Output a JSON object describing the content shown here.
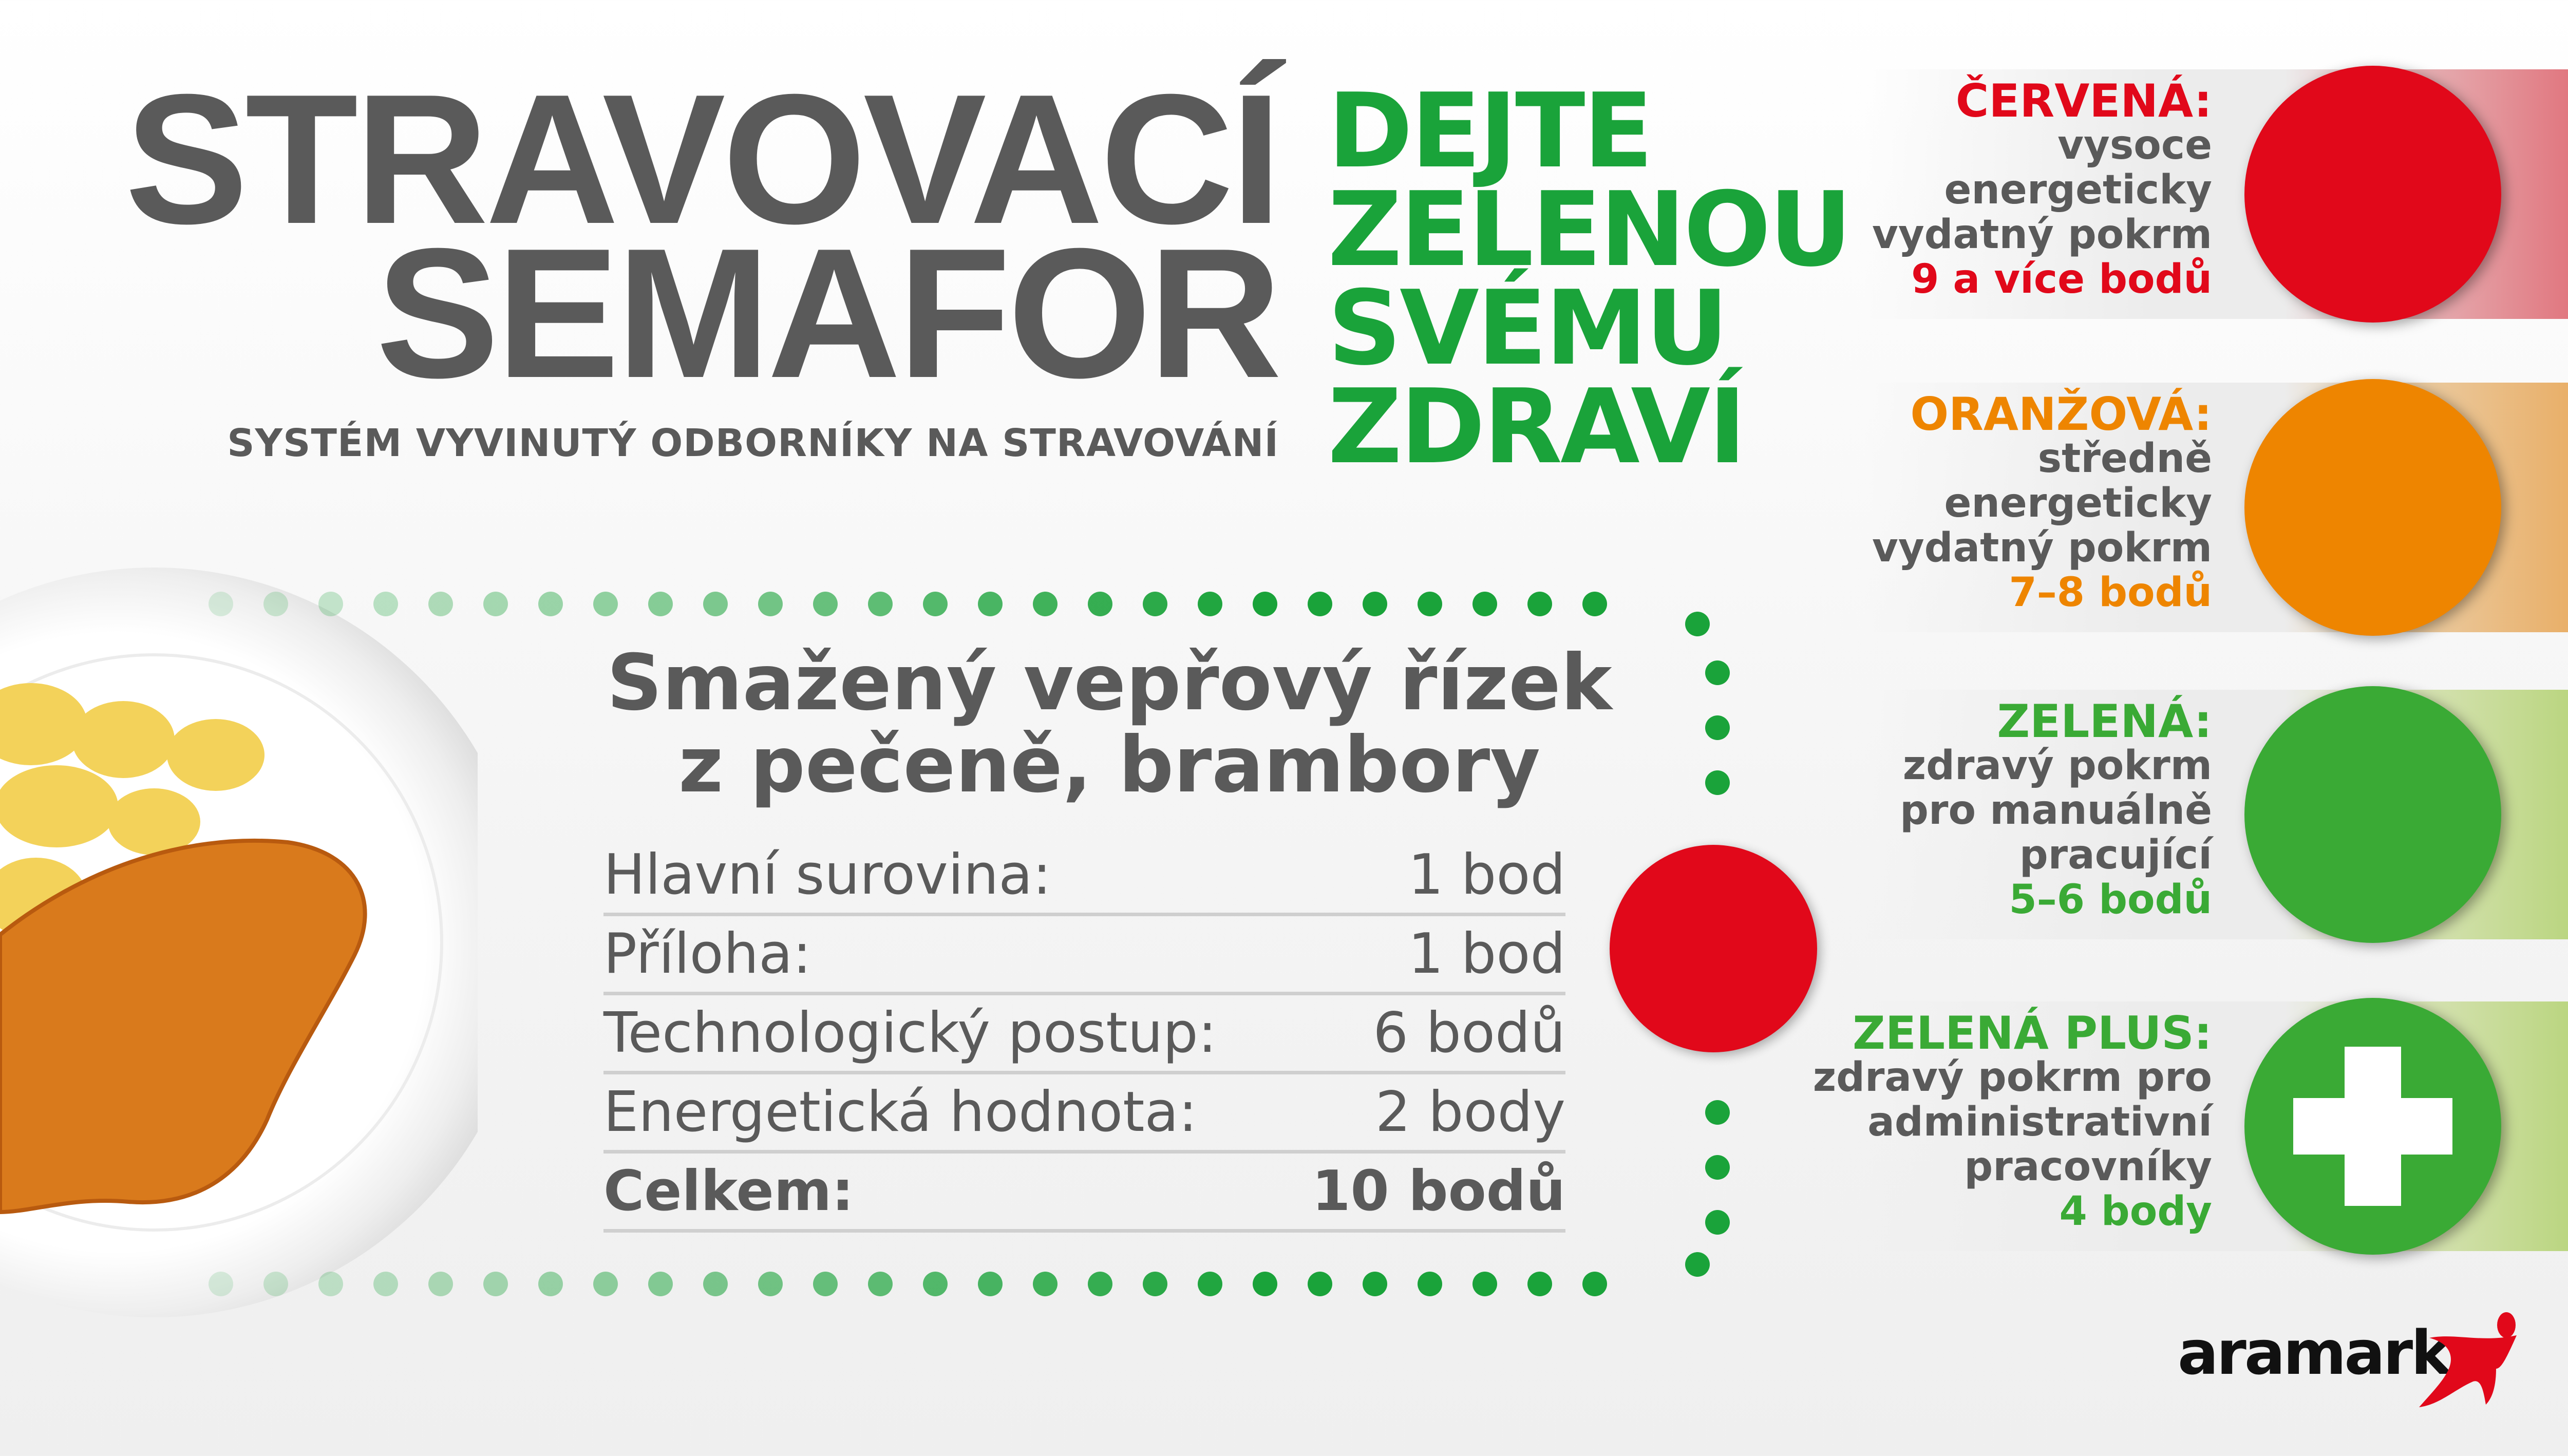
{
  "header": {
    "title_line1": "STRAVOVACÍ",
    "title_line2": "SEMAFOR",
    "subtitle": "SYSTÉM VYVINUTÝ ODBORNÍKY NA STRAVOVÁNÍ",
    "slogan": [
      "DEJTE",
      "ZELENOU",
      "SVÉMU",
      "ZDRAVÍ"
    ]
  },
  "dish": {
    "title_line1": "Smažený vepřový řízek",
    "title_line2": "z pečeně, brambory",
    "rows": [
      {
        "label": "Hlavní surovina:",
        "value": "1 bod"
      },
      {
        "label": "Příloha:",
        "value": "1 bod"
      },
      {
        "label": "Technologický postup:",
        "value": "6 bodů"
      },
      {
        "label": "Energetická hodnota:",
        "value": "2 body"
      }
    ],
    "total": {
      "label": "Celkem:",
      "value": "10 bodů"
    },
    "result_color": "#e1081a"
  },
  "legend": [
    {
      "title": "ČERVENÁ:",
      "lines": [
        "vysoce",
        "energeticky",
        "vydatný pokrm"
      ],
      "points": "9 a více bodů",
      "color": "#e1081a",
      "icon": "red-light"
    },
    {
      "title": "ORANŽOVÁ:",
      "lines": [
        "středně",
        "energeticky",
        "vydatný pokrm"
      ],
      "points": "7–8 bodů",
      "color": "#ee8500",
      "icon": "orange-light"
    },
    {
      "title": "ZELENÁ:",
      "lines": [
        "zdravý pokrm",
        "pro manuálně",
        "pracující"
      ],
      "points": "5–6 bodů",
      "color": "#3aaa35",
      "icon": "green-light"
    },
    {
      "title": "ZELENÁ PLUS:",
      "lines": [
        "zdravý pokrm pro",
        "administrativní",
        "pracovníky"
      ],
      "points": "4 body",
      "color": "#3aaa35",
      "icon": "plus-icon"
    }
  ],
  "brand": {
    "logo_text": "aramark",
    "colors": {
      "green": "#1aa33a",
      "gray": "#5a5a5a"
    }
  }
}
